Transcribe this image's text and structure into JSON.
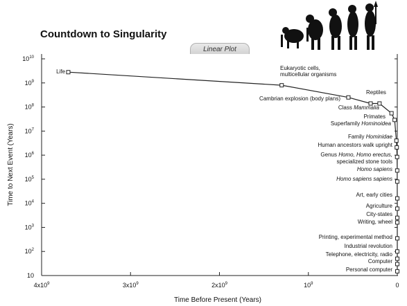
{
  "title": "Countdown to Singularity",
  "tab_label": "Linear Plot",
  "chart_data": {
    "type": "line",
    "title": "Countdown to Singularity",
    "xlabel": "Time Before Present (Years)",
    "ylabel": "Time to Next Event (Years)",
    "x_scale": "linear",
    "y_scale": "log",
    "xlim": [
      4000000000,
      0
    ],
    "ylim": [
      10,
      10000000000
    ],
    "x_ticks": [
      {
        "value": 4000000000,
        "base": "4x10",
        "exp": "9"
      },
      {
        "value": 3000000000,
        "base": "3x10",
        "exp": "9"
      },
      {
        "value": 2000000000,
        "base": "2x10",
        "exp": "9"
      },
      {
        "value": 1000000000,
        "base": "10",
        "exp": "9"
      },
      {
        "value": 0,
        "base": "0",
        "exp": ""
      }
    ],
    "y_ticks": [
      {
        "value": 10000000000,
        "base": "10",
        "exp": "10"
      },
      {
        "value": 1000000000,
        "base": "10",
        "exp": "9"
      },
      {
        "value": 100000000,
        "base": "10",
        "exp": "8"
      },
      {
        "value": 10000000,
        "base": "10",
        "exp": "7"
      },
      {
        "value": 1000000,
        "base": "10",
        "exp": "6"
      },
      {
        "value": 100000,
        "base": "10",
        "exp": "5"
      },
      {
        "value": 10000,
        "base": "10",
        "exp": "4"
      },
      {
        "value": 1000,
        "base": "10",
        "exp": "3"
      },
      {
        "value": 100,
        "base": "10",
        "exp": "2"
      },
      {
        "value": 10,
        "base": "10",
        "exp": ""
      }
    ],
    "points": [
      {
        "label": [
          "Life"
        ],
        "x": 3700000000,
        "y": 2800000000
      },
      {
        "label": [
          "Eukaryotic cells,",
          "multicellular organisms"
        ],
        "x": 1300000000,
        "y": 800000000
      },
      {
        "label": [
          "Cambrian explosion (body plans)"
        ],
        "x": 550000000,
        "y": 250000000
      },
      {
        "label": [
          "Reptiles"
        ],
        "x": 300000000,
        "y": 140000000
      },
      {
        "label": [
          "Class Mammalia"
        ],
        "x": 200000000,
        "y": 140000000
      },
      {
        "label": [
          "Primates"
        ],
        "x": 65000000,
        "y": 55000000
      },
      {
        "label": [
          "Superfamily Hominoidea"
        ],
        "x": 30000000,
        "y": 29000000
      },
      {
        "label": [
          "Family Hominidae"
        ],
        "x": 10000000,
        "y": 4000000
      },
      {
        "label": [
          "Human ancestors walk upright"
        ],
        "x": 6000000,
        "y": 2100000
      },
      {
        "label": [
          "Genus Homo, Homo erectus,",
          "specialized stone tools"
        ],
        "x": 2000000,
        "y": 840000
      },
      {
        "label": [
          "Homo sapiens"
        ],
        "x": 1000000,
        "y": 230000
      },
      {
        "label": [
          "Homo sapiens sapiens"
        ],
        "x": 500000,
        "y": 80000
      },
      {
        "label": [
          "Art, early cities"
        ],
        "x": 100000,
        "y": 16000
      },
      {
        "label": [
          "Agriculture"
        ],
        "x": 15000,
        "y": 6000
      },
      {
        "label": [
          "City-states"
        ],
        "x": 10000,
        "y": 2500
      },
      {
        "label": [
          "Writing, wheel"
        ],
        "x": 5000,
        "y": 1600
      },
      {
        "label": [
          "Printing, experimental method"
        ],
        "x": 500,
        "y": 350
      },
      {
        "label": [
          "Industrial revolution"
        ],
        "x": 250,
        "y": 100
      },
      {
        "label": [
          "Telephone, electricity, radio"
        ],
        "x": 120,
        "y": 50
      },
      {
        "label": [
          "Computer"
        ],
        "x": 60,
        "y": 30
      },
      {
        "label": [
          "Personal computer"
        ],
        "x": 25,
        "y": 15
      }
    ],
    "label_styles": [
      {
        "text": "Class Mammalia",
        "italic_part": "Mammalia"
      },
      {
        "text": "Superfamily Hominoidea",
        "italic_part": "Hominoidea"
      },
      {
        "text": "Family Hominidae",
        "italic_part": "Hominidae"
      },
      {
        "text": "Genus Homo, Homo erectus,",
        "italic_part": "Homo, Homo erectus,"
      },
      {
        "text": "Homo sapiens",
        "italic_part": "Homo sapiens"
      },
      {
        "text": "Homo sapiens sapiens",
        "italic_part": "Homo sapiens sapiens"
      }
    ]
  }
}
